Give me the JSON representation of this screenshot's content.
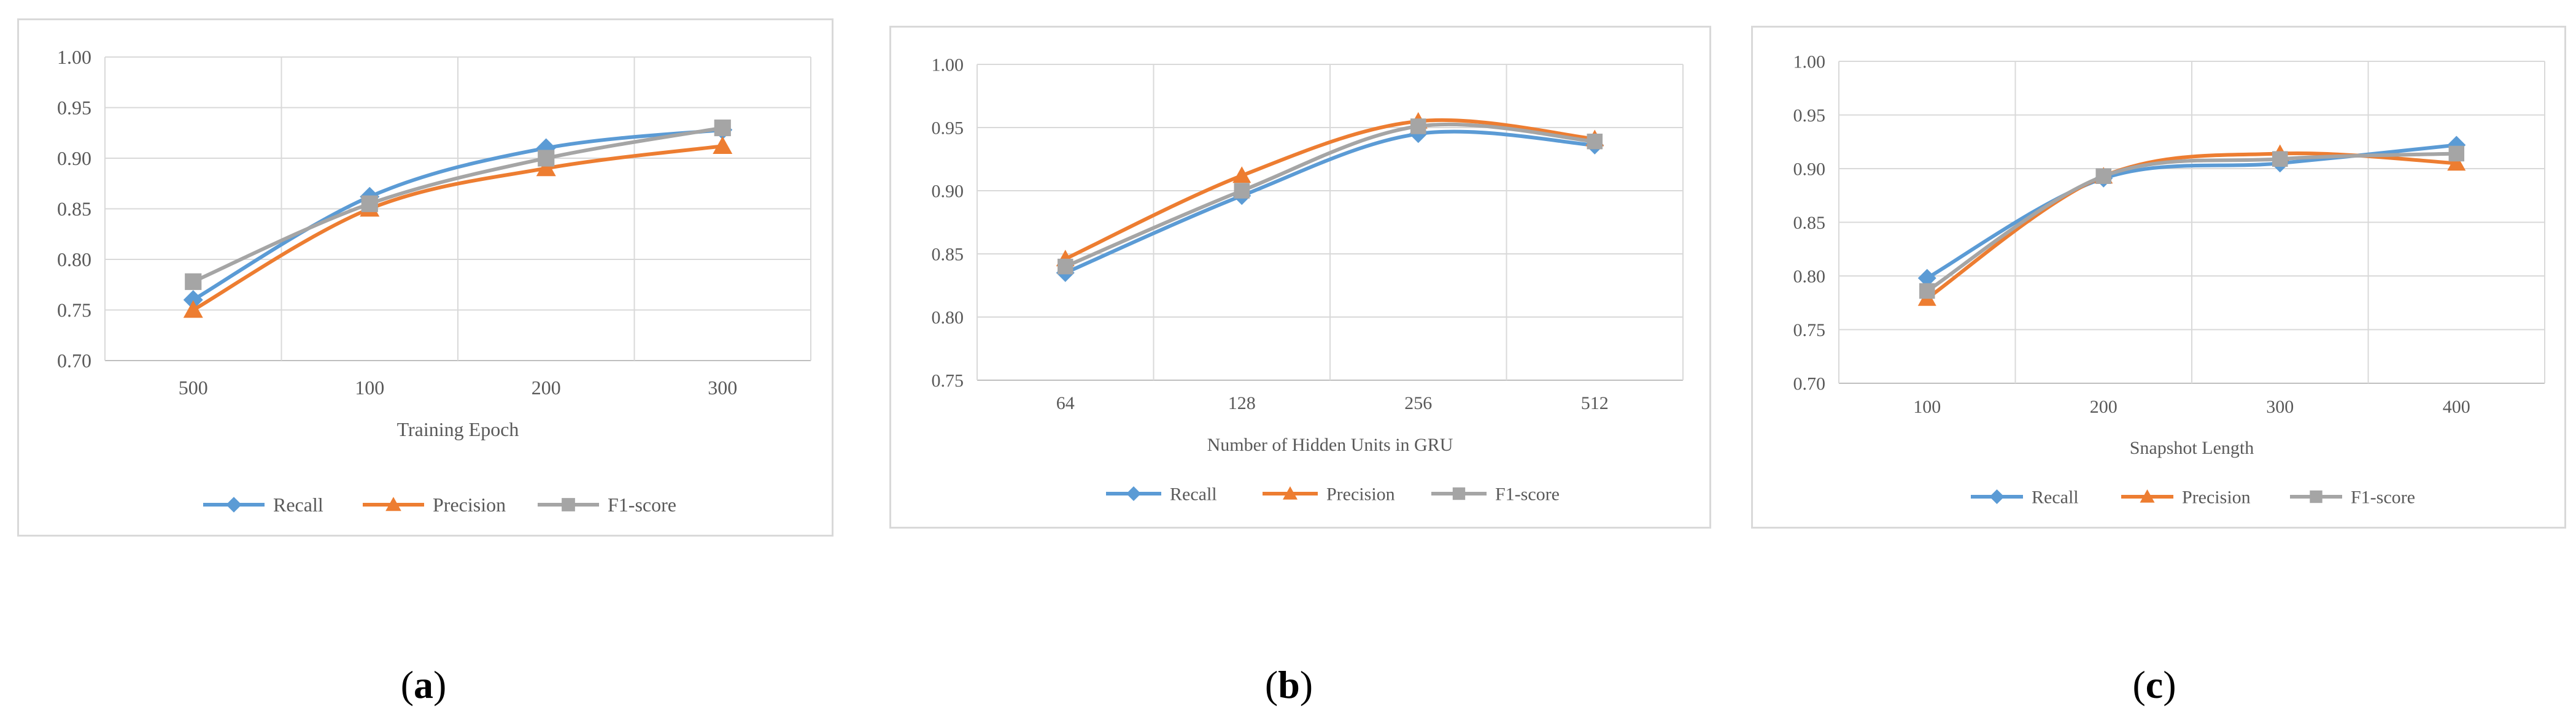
{
  "chart_data": [
    {
      "type": "line",
      "panel_label": "a",
      "xlabel": "Training Epoch",
      "ylabel": "",
      "categories": [
        "500",
        "100",
        "200",
        "300"
      ],
      "ylim": [
        0.7,
        1.0
      ],
      "yticks": [
        "0.70",
        "0.75",
        "0.80",
        "0.85",
        "0.90",
        "0.95",
        "1.00"
      ],
      "grid": true,
      "legend_position": "bottom",
      "series": [
        {
          "name": "Recall",
          "values": [
            0.76,
            0.862,
            0.91,
            0.928
          ],
          "color": "#5b9bd5",
          "marker": "diamond"
        },
        {
          "name": "Precision",
          "values": [
            0.75,
            0.85,
            0.89,
            0.912
          ],
          "color": "#ed7d31",
          "marker": "triangle"
        },
        {
          "name": "F1-score",
          "values": [
            0.778,
            0.855,
            0.9,
            0.93
          ],
          "color": "#a5a5a5",
          "marker": "square"
        }
      ]
    },
    {
      "type": "line",
      "panel_label": "b",
      "xlabel": "Number of Hidden Units in GRU",
      "ylabel": "",
      "categories": [
        "64",
        "128",
        "256",
        "512"
      ],
      "ylim": [
        0.75,
        1.0
      ],
      "yticks": [
        "0.75",
        "0.80",
        "0.85",
        "0.90",
        "0.95",
        "1.00"
      ],
      "grid": true,
      "legend_position": "bottom",
      "series": [
        {
          "name": "Recall",
          "values": [
            0.835,
            0.896,
            0.945,
            0.936
          ],
          "color": "#5b9bd5",
          "marker": "diamond"
        },
        {
          "name": "Precision",
          "values": [
            0.846,
            0.912,
            0.955,
            0.941
          ],
          "color": "#ed7d31",
          "marker": "triangle"
        },
        {
          "name": "F1-score",
          "values": [
            0.84,
            0.9,
            0.951,
            0.939
          ],
          "color": "#a5a5a5",
          "marker": "square"
        }
      ]
    },
    {
      "type": "line",
      "panel_label": "c",
      "xlabel": "Snapshot Length",
      "ylabel": "",
      "categories": [
        "100",
        "200",
        "300",
        "400"
      ],
      "ylim": [
        0.7,
        1.0
      ],
      "yticks": [
        "0.70",
        "0.75",
        "0.80",
        "0.85",
        "0.90",
        "0.95",
        "1.00"
      ],
      "grid": true,
      "legend_position": "bottom",
      "series": [
        {
          "name": "Recall",
          "values": [
            0.798,
            0.891,
            0.905,
            0.922
          ],
          "color": "#5b9bd5",
          "marker": "diamond"
        },
        {
          "name": "Precision",
          "values": [
            0.779,
            0.893,
            0.914,
            0.905
          ],
          "color": "#ed7d31",
          "marker": "triangle"
        },
        {
          "name": "F1-score",
          "values": [
            0.786,
            0.893,
            0.909,
            0.914
          ],
          "color": "#a5a5a5",
          "marker": "square"
        }
      ]
    }
  ]
}
